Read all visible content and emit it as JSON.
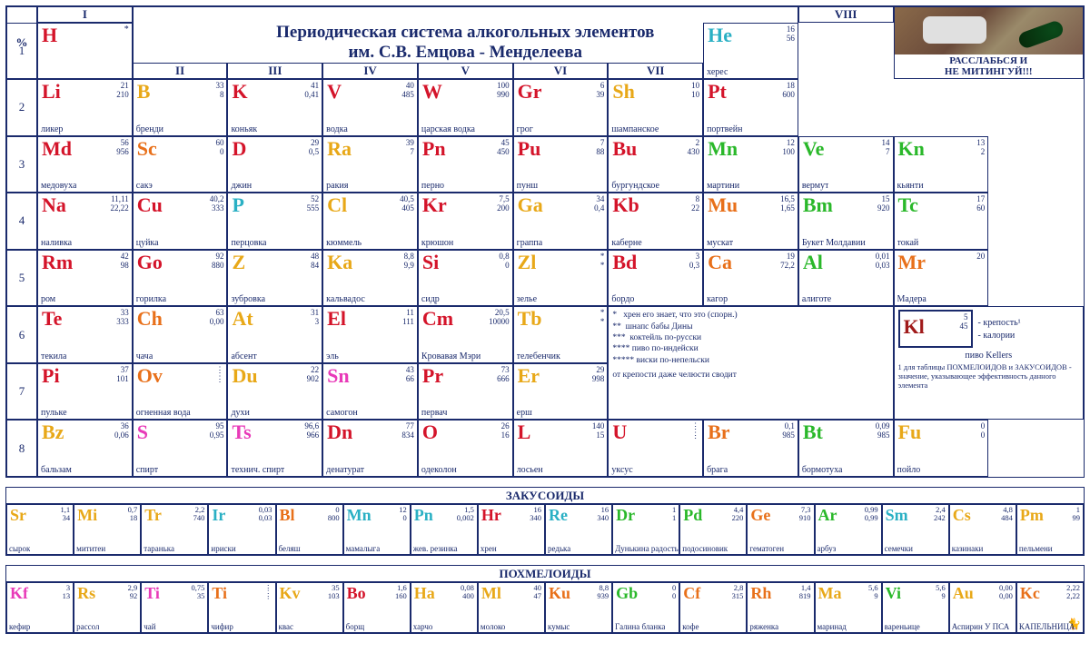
{
  "title": "Периодическая система алкогольных элементов\nим. С.В. Емцова - Менделеева",
  "image_caption": "РАССЛАБЬСЯ И\nНЕ МИТИНГУЙ!!!",
  "colors": {
    "red": "#d4142a",
    "cyan": "#2ab0c4",
    "gold": "#e8a818",
    "green": "#2ab82a",
    "orange": "#e8701a",
    "pink": "#e83ab8",
    "darkred": "#a01a1a",
    "darkorange": "#c8501a",
    "border": "#1a2a6c"
  },
  "group_top": {
    "percent": "%",
    "I": "I",
    "VIII": "VIII"
  },
  "group_mid": [
    "II",
    "III",
    "IV",
    "V",
    "VI",
    "VII"
  ],
  "period_labels": [
    "1",
    "2",
    "3",
    "4",
    "5",
    "6",
    "7",
    "8"
  ],
  "legend": {
    "star1": "хрен его знает, что это (спорн.)",
    "star2": "шнапс бабы Дины",
    "star3": "коктейль по-русски",
    "star4": "пиво по-индейски",
    "star5": "виски по-непельски",
    "jaw": "от крепости даже челюсти сводит"
  },
  "example": {
    "sym": "Kl",
    "v1": "5",
    "v2": "45",
    "name": "пиво Kellers",
    "a": "- крепость¹",
    "b": "- калории",
    "note": "1 для таблицы ПОХМЕЛОИДОВ и ЗАКУСОИДОВ - значение, указывающее эффективность данного элемента"
  },
  "elements": [
    {
      "p": 1,
      "g": 1,
      "sym": "H",
      "n1": "",
      "n2": "",
      "name": "",
      "c": "red",
      "star": "*"
    },
    {
      "p": 1,
      "g": 8,
      "sym": "He",
      "n1": "16",
      "n2": "56",
      "name": "херес",
      "c": "cyan"
    },
    {
      "p": 2,
      "g": 1,
      "sym": "Li",
      "n1": "21",
      "n2": "210",
      "name": "ликер",
      "c": "red"
    },
    {
      "p": 2,
      "g": 2,
      "sym": "B",
      "n1": "33",
      "n2": "8",
      "name": "бренди",
      "c": "gold"
    },
    {
      "p": 2,
      "g": 3,
      "sym": "K",
      "n1": "41",
      "n2": "0,41",
      "name": "коньяк",
      "c": "red"
    },
    {
      "p": 2,
      "g": 4,
      "sym": "V",
      "n1": "40",
      "n2": "485",
      "name": "водка",
      "c": "red"
    },
    {
      "p": 2,
      "g": 5,
      "sym": "W",
      "n1": "100",
      "n2": "990",
      "name": "царская водка",
      "c": "red"
    },
    {
      "p": 2,
      "g": 6,
      "sym": "Gr",
      "n1": "6",
      "n2": "39",
      "name": "грог",
      "c": "red"
    },
    {
      "p": 2,
      "g": 7,
      "sym": "Sh",
      "n1": "10",
      "n2": "10",
      "name": "шампанское",
      "c": "gold"
    },
    {
      "p": 2,
      "g": 8,
      "sym": "Pt",
      "n1": "18",
      "n2": "600",
      "name": "портвейн",
      "c": "red"
    },
    {
      "p": 3,
      "g": 1,
      "sym": "Md",
      "n1": "56",
      "n2": "956",
      "name": "медовуха",
      "c": "red"
    },
    {
      "p": 3,
      "g": 2,
      "sym": "Sc",
      "n1": "60",
      "n2": "0",
      "name": "сакэ",
      "c": "orange"
    },
    {
      "p": 3,
      "g": 3,
      "sym": "D",
      "n1": "29",
      "n2": "0,5",
      "name": "джин",
      "c": "red"
    },
    {
      "p": 3,
      "g": 4,
      "sym": "Ra",
      "n1": "39",
      "n2": "7",
      "name": "ракия",
      "c": "gold"
    },
    {
      "p": 3,
      "g": 5,
      "sym": "Pn",
      "n1": "45",
      "n2": "450",
      "name": "перно",
      "c": "red"
    },
    {
      "p": 3,
      "g": 6,
      "sym": "Pu",
      "n1": "7",
      "n2": "88",
      "name": "пунш",
      "c": "red"
    },
    {
      "p": 3,
      "g": 7,
      "sym": "Bu",
      "n1": "2",
      "n2": "430",
      "name": "бургундское",
      "c": "red"
    },
    {
      "p": 3,
      "g": 8,
      "sym": "Mn",
      "n1": "12",
      "n2": "100",
      "name": "мартини",
      "c": "green"
    },
    {
      "p": 3,
      "g": 9,
      "sym": "Ve",
      "n1": "14",
      "n2": "7",
      "name": "вермут",
      "c": "green"
    },
    {
      "p": 3,
      "g": 10,
      "sym": "Kn",
      "n1": "13",
      "n2": "2",
      "name": "кьянти",
      "c": "green"
    },
    {
      "p": 4,
      "g": 1,
      "sym": "Na",
      "n1": "11,11",
      "n2": "22,22",
      "name": "наливка",
      "c": "red"
    },
    {
      "p": 4,
      "g": 2,
      "sym": "Cu",
      "n1": "40,2",
      "n2": "333",
      "name": "цуйка",
      "c": "red"
    },
    {
      "p": 4,
      "g": 3,
      "sym": "P",
      "n1": "52",
      "n2": "555",
      "name": "перцовка",
      "c": "cyan"
    },
    {
      "p": 4,
      "g": 4,
      "sym": "Cl",
      "n1": "40,5",
      "n2": "405",
      "name": "кюммель",
      "c": "gold"
    },
    {
      "p": 4,
      "g": 5,
      "sym": "Kr",
      "n1": "7,5",
      "n2": "200",
      "name": "крюшон",
      "c": "red"
    },
    {
      "p": 4,
      "g": 6,
      "sym": "Ga",
      "n1": "34",
      "n2": "0,4",
      "name": "граппа",
      "c": "gold"
    },
    {
      "p": 4,
      "g": 7,
      "sym": "Kb",
      "n1": "8",
      "n2": "22",
      "name": "каберне",
      "c": "red"
    },
    {
      "p": 4,
      "g": 8,
      "sym": "Mu",
      "n1": "16,5",
      "n2": "1,65",
      "name": "мускат",
      "c": "orange"
    },
    {
      "p": 4,
      "g": 9,
      "sym": "Bm",
      "n1": "15",
      "n2": "920",
      "name": "Букет Молдавии",
      "c": "green"
    },
    {
      "p": 4,
      "g": 10,
      "sym": "Tc",
      "n1": "17",
      "n2": "60",
      "name": "токай",
      "c": "green"
    },
    {
      "p": 5,
      "g": 1,
      "sym": "Rm",
      "n1": "42",
      "n2": "98",
      "name": "ром",
      "c": "red"
    },
    {
      "p": 5,
      "g": 2,
      "sym": "Go",
      "n1": "92",
      "n2": "880",
      "name": "горилка",
      "c": "red"
    },
    {
      "p": 5,
      "g": 3,
      "sym": "Z",
      "n1": "48",
      "n2": "84",
      "name": "зубровка",
      "c": "gold"
    },
    {
      "p": 5,
      "g": 4,
      "sym": "Ka",
      "n1": "8,8",
      "n2": "9,9",
      "name": "кальвадос",
      "c": "gold"
    },
    {
      "p": 5,
      "g": 5,
      "sym": "Si",
      "n1": "0,8",
      "n2": "0",
      "name": "сидр",
      "c": "red"
    },
    {
      "p": 5,
      "g": 6,
      "sym": "Zl",
      "n1": "*",
      "n2": "*",
      "name": "зелье",
      "c": "gold"
    },
    {
      "p": 5,
      "g": 7,
      "sym": "Bd",
      "n1": "3",
      "n2": "0,3",
      "name": "бордо",
      "c": "red"
    },
    {
      "p": 5,
      "g": 8,
      "sym": "Ca",
      "n1": "19",
      "n2": "72,2",
      "name": "кагор",
      "c": "orange"
    },
    {
      "p": 5,
      "g": 9,
      "sym": "Al",
      "n1": "0,01",
      "n2": "0,03",
      "name": "алиготе",
      "c": "green"
    },
    {
      "p": 5,
      "g": 10,
      "sym": "Mr",
      "n1": "20",
      "n2": "",
      "name": "Мадера",
      "c": "orange"
    },
    {
      "p": 6,
      "g": 1,
      "sym": "Te",
      "n1": "33",
      "n2": "333",
      "name": "текила",
      "c": "red"
    },
    {
      "p": 6,
      "g": 2,
      "sym": "Ch",
      "n1": "63",
      "n2": "0,00",
      "name": "чача",
      "c": "orange"
    },
    {
      "p": 6,
      "g": 3,
      "sym": "At",
      "n1": "31",
      "n2": "3",
      "name": "абсент",
      "c": "gold"
    },
    {
      "p": 6,
      "g": 4,
      "sym": "El",
      "n1": "11",
      "n2": "111",
      "name": "эль",
      "c": "red"
    },
    {
      "p": 6,
      "g": 5,
      "sym": "Cm",
      "n1": "20,5",
      "n2": "10000",
      "name": "Кровавая Мэри",
      "c": "red"
    },
    {
      "p": 6,
      "g": 6,
      "sym": "Tb",
      "n1": "*",
      "n2": "*",
      "name": "телебенчик",
      "c": "gold"
    },
    {
      "p": 7,
      "g": 1,
      "sym": "Pi",
      "n1": "37",
      "n2": "101",
      "name": "пульке",
      "c": "red"
    },
    {
      "p": 7,
      "g": 2,
      "sym": "Ov",
      "n1": "⋮",
      "n2": "⋮",
      "name": "огненная вода",
      "c": "orange"
    },
    {
      "p": 7,
      "g": 3,
      "sym": "Du",
      "n1": "22",
      "n2": "902",
      "name": "духи",
      "c": "gold"
    },
    {
      "p": 7,
      "g": 4,
      "sym": "Sn",
      "n1": "43",
      "n2": "66",
      "name": "самогон",
      "c": "pink"
    },
    {
      "p": 7,
      "g": 5,
      "sym": "Pr",
      "n1": "73",
      "n2": "666",
      "name": "первач",
      "c": "red"
    },
    {
      "p": 7,
      "g": 6,
      "sym": "Er",
      "n1": "29",
      "n2": "998",
      "name": "ерш",
      "c": "gold"
    },
    {
      "p": 8,
      "g": 1,
      "sym": "Bz",
      "n1": "36",
      "n2": "0,06",
      "name": "бальзам",
      "c": "gold"
    },
    {
      "p": 8,
      "g": 2,
      "sym": "S",
      "n1": "95",
      "n2": "0,95",
      "name": "спирт",
      "c": "pink"
    },
    {
      "p": 8,
      "g": 3,
      "sym": "Ts",
      "n1": "96,6",
      "n2": "966",
      "name": "технич. спирт",
      "c": "pink"
    },
    {
      "p": 8,
      "g": 4,
      "sym": "Dn",
      "n1": "77",
      "n2": "834",
      "name": "денатурат",
      "c": "red"
    },
    {
      "p": 8,
      "g": 5,
      "sym": "O",
      "n1": "26",
      "n2": "16",
      "name": "одеколон",
      "c": "red"
    },
    {
      "p": 8,
      "g": 6,
      "sym": "L",
      "n1": "140",
      "n2": "15",
      "name": "лосьен",
      "c": "red"
    },
    {
      "p": 8,
      "g": 7,
      "sym": "U",
      "n1": "⋮",
      "n2": "⋮",
      "name": "уксус",
      "c": "red"
    },
    {
      "p": 8,
      "g": 8,
      "sym": "Br",
      "n1": "0,1",
      "n2": "985",
      "name": "брага",
      "c": "orange"
    },
    {
      "p": 8,
      "g": 9,
      "sym": "Bt",
      "n1": "0,09",
      "n2": "985",
      "name": "бормотуха",
      "c": "green"
    },
    {
      "p": 8,
      "g": 10,
      "sym": "Fu",
      "n1": "0",
      "n2": "0",
      "name": "пойло",
      "c": "gold"
    }
  ],
  "zakusoids_title": "ЗАКУСОИДЫ",
  "zakusoids": [
    {
      "sym": "Sr",
      "n1": "1,1",
      "n2": "34",
      "name": "сырок",
      "c": "gold"
    },
    {
      "sym": "Mi",
      "n1": "0,7",
      "n2": "18",
      "name": "мититеи",
      "c": "gold"
    },
    {
      "sym": "Tr",
      "n1": "2,2",
      "n2": "740",
      "name": "таранька",
      "c": "gold"
    },
    {
      "sym": "Ir",
      "n1": "0,03",
      "n2": "0,03",
      "name": "ириски",
      "c": "cyan"
    },
    {
      "sym": "Bl",
      "n1": "0",
      "n2": "800",
      "name": "беляш",
      "c": "orange"
    },
    {
      "sym": "Mn",
      "n1": "12",
      "n2": "0",
      "name": "мамалыга",
      "c": "cyan"
    },
    {
      "sym": "Pn",
      "n1": "1,5",
      "n2": "0,002",
      "name": "жев. резинка",
      "c": "cyan"
    },
    {
      "sym": "Hr",
      "n1": "16",
      "n2": "340",
      "name": "хрен",
      "c": "red"
    },
    {
      "sym": "Re",
      "n1": "16",
      "n2": "340",
      "name": "редька",
      "c": "cyan"
    },
    {
      "sym": "Dr",
      "n1": "1",
      "n2": "1",
      "name": "Дунькина радость",
      "c": "green"
    },
    {
      "sym": "Pd",
      "n1": "4,4",
      "n2": "220",
      "name": "подосиновик",
      "c": "green"
    },
    {
      "sym": "Ge",
      "n1": "7,3",
      "n2": "910",
      "name": "гематоген",
      "c": "orange"
    },
    {
      "sym": "Ar",
      "n1": "0,99",
      "n2": "0,99",
      "name": "арбуз",
      "c": "green"
    },
    {
      "sym": "Sm",
      "n1": "2,4",
      "n2": "242",
      "name": "семечки",
      "c": "cyan"
    },
    {
      "sym": "Cs",
      "n1": "4,8",
      "n2": "484",
      "name": "казинаки",
      "c": "gold"
    },
    {
      "sym": "Pm",
      "n1": "1",
      "n2": "99",
      "name": "пельмени",
      "c": "gold",
      "extra": "9"
    }
  ],
  "pohmeloids_title": "ПОХМЕЛОИДЫ",
  "pohmeloids": [
    {
      "sym": "Kf",
      "n1": "3",
      "n2": "13",
      "name": "кефир",
      "c": "pink"
    },
    {
      "sym": "Rs",
      "n1": "2,9",
      "n2": "92",
      "name": "рассол",
      "c": "gold"
    },
    {
      "sym": "Ti",
      "n1": "0,75",
      "n2": "35",
      "name": "чай",
      "c": "pink"
    },
    {
      "sym": "Ti",
      "n1": "⋮",
      "n2": "⋮",
      "name": "чифир",
      "c": "orange"
    },
    {
      "sym": "Kv",
      "n1": "35",
      "n2": "103",
      "name": "квас",
      "c": "gold"
    },
    {
      "sym": "Bo",
      "n1": "1,6",
      "n2": "160",
      "name": "борщ",
      "c": "red"
    },
    {
      "sym": "Ha",
      "n1": "0,08",
      "n2": "400",
      "name": "харчо",
      "c": "gold"
    },
    {
      "sym": "Ml",
      "n1": "40",
      "n2": "47",
      "name": "молоко",
      "c": "gold"
    },
    {
      "sym": "Ku",
      "n1": "8,8",
      "n2": "939",
      "name": "кумыс",
      "c": "orange"
    },
    {
      "sym": "Gb",
      "n1": "0",
      "n2": "0",
      "name": "Галина бланка",
      "c": "green"
    },
    {
      "sym": "Cf",
      "n1": "2,8",
      "n2": "315",
      "name": "кофе",
      "c": "orange"
    },
    {
      "sym": "Rh",
      "n1": "1,4",
      "n2": "819",
      "name": "ряженка",
      "c": "orange"
    },
    {
      "sym": "Ma",
      "n1": "5,6",
      "n2": "9",
      "name": "маринад",
      "c": "gold"
    },
    {
      "sym": "Vi",
      "n1": "5,6",
      "n2": "9",
      "name": "вареньице",
      "c": "green"
    },
    {
      "sym": "Au",
      "n1": "0,00",
      "n2": "0,00",
      "name": "Аспирин У ПСА",
      "c": "gold"
    },
    {
      "sym": "Kc",
      "n1": "2,22",
      "n2": "2,22",
      "name": "КАПЕЛЬНИЦА",
      "c": "orange",
      "icon": "🐈"
    }
  ]
}
